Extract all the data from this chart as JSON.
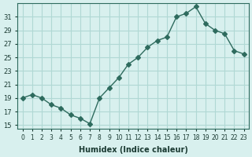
{
  "x": [
    0,
    1,
    2,
    3,
    4,
    5,
    6,
    7,
    8,
    9,
    10,
    11,
    12,
    13,
    14,
    15,
    16,
    17,
    18,
    19,
    20,
    21,
    22,
    23
  ],
  "y": [
    19,
    19.5,
    19,
    18,
    17.5,
    16.5,
    16,
    15.2,
    19,
    20.5,
    22,
    24,
    25,
    26.5,
    27.5,
    28,
    31,
    31.5,
    32.5,
    30,
    29,
    28.5,
    26,
    25.5
  ],
  "line_color": "#2e6b5e",
  "marker": "D",
  "marker_size": 3,
  "bg_color": "#d8f0ee",
  "grid_color": "#b0d8d4",
  "xlabel": "Humidex (Indice chaleur)",
  "yticks": [
    15,
    17,
    19,
    21,
    23,
    25,
    27,
    29,
    31
  ],
  "xticks": [
    0,
    1,
    2,
    3,
    4,
    5,
    6,
    7,
    8,
    9,
    10,
    11,
    12,
    13,
    14,
    15,
    16,
    17,
    18,
    19,
    20,
    21,
    22,
    23
  ],
  "xlim": [
    -0.5,
    23.5
  ],
  "ylim": [
    14.5,
    33
  ]
}
